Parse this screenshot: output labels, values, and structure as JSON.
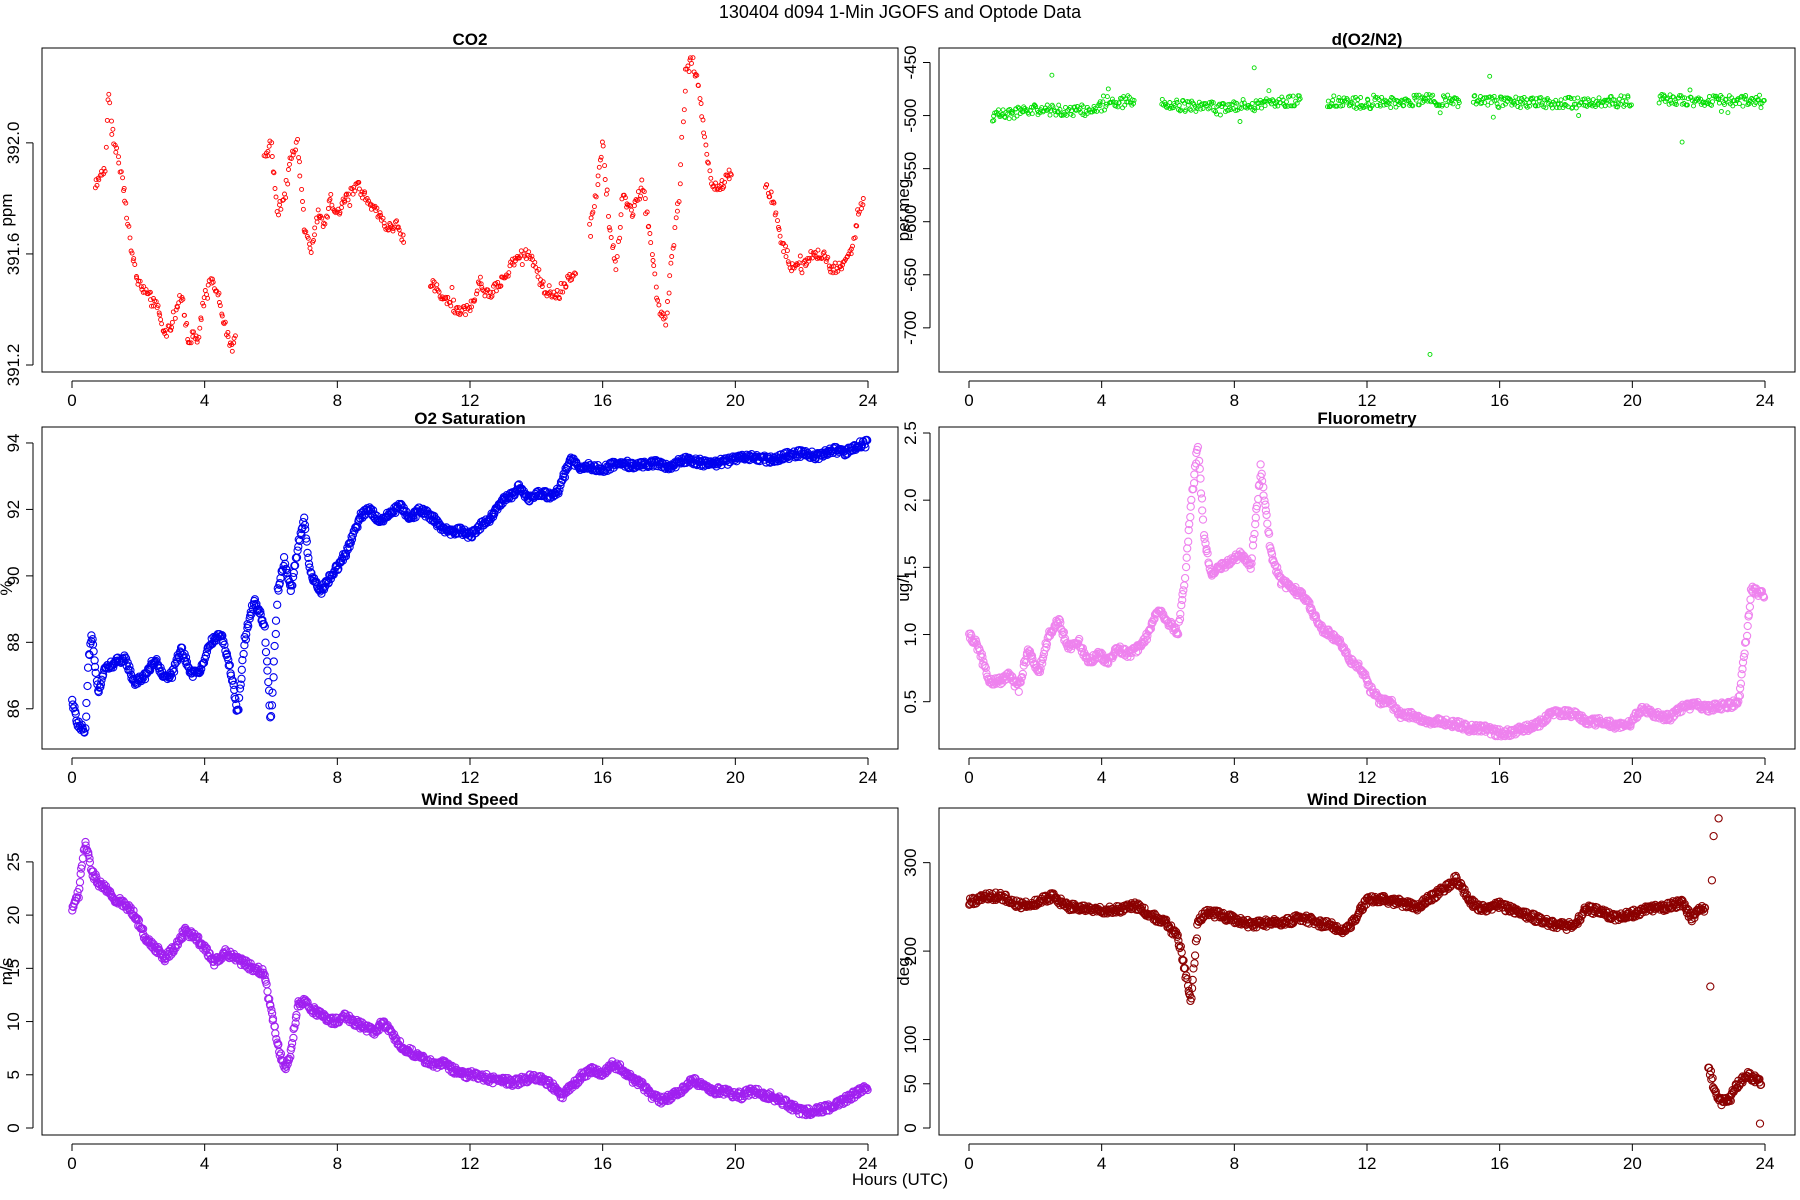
{
  "figure": {
    "title": "130404   d094   1-Min  JGOFS and Optode Data",
    "xlabel": "Hours (UTC)"
  },
  "chart_data": [
    {
      "type": "scatter",
      "title": "CO2",
      "ylabel": "ppm",
      "color": "#ff0000",
      "marker_scale": 0.55,
      "xlim": [
        0,
        24
      ],
      "xticks": [
        0,
        4,
        8,
        12,
        16,
        20,
        24
      ],
      "ylim": [
        391.2,
        392.32
      ],
      "yticks": [
        391.2,
        391.6,
        392.0
      ],
      "ytick_labels": [
        "391.2",
        "391.6",
        "392.0"
      ],
      "segments": [
        {
          "x": [
            0.7,
            1.0,
            1.1,
            1.2,
            1.4,
            1.6,
            1.8,
            2.0,
            2.3,
            2.6,
            2.8,
            3.0,
            3.3,
            3.5,
            3.8,
            4.0,
            4.2,
            4.4,
            4.6,
            4.8,
            4.95
          ],
          "y": [
            391.85,
            391.9,
            392.2,
            392.05,
            391.95,
            391.8,
            391.6,
            391.5,
            391.45,
            391.4,
            391.3,
            391.35,
            391.45,
            391.3,
            391.3,
            391.45,
            391.5,
            391.45,
            391.35,
            391.25,
            391.3
          ]
        },
        {
          "x": [
            5.8,
            6.0,
            6.2,
            6.4,
            6.6,
            6.8,
            7.0,
            7.2,
            7.4,
            7.6,
            7.8,
            8.0,
            8.3,
            8.6,
            8.9,
            9.2,
            9.5,
            9.8,
            10.0
          ],
          "y": [
            391.95,
            392.0,
            391.75,
            391.8,
            391.95,
            392.0,
            391.7,
            391.6,
            391.75,
            391.7,
            391.8,
            391.75,
            391.8,
            391.85,
            391.8,
            391.75,
            391.7,
            391.7,
            391.65
          ]
        },
        {
          "x": [
            10.8,
            11.2,
            11.6,
            12.0,
            12.3,
            12.6,
            12.9,
            13.2,
            13.5,
            13.8,
            14.0,
            14.3,
            14.6,
            14.9,
            15.2
          ],
          "y": [
            391.5,
            391.45,
            391.4,
            391.4,
            391.5,
            391.45,
            391.5,
            391.55,
            391.6,
            391.6,
            391.55,
            391.45,
            391.45,
            391.5,
            391.55
          ]
        },
        {
          "x": [
            15.6,
            15.8,
            16.0,
            16.2,
            16.4,
            16.6,
            16.9,
            17.2,
            17.5,
            17.7,
            17.9,
            18.1,
            18.3,
            18.5,
            18.7,
            18.9,
            19.1,
            19.3,
            19.6,
            19.9
          ],
          "y": [
            391.7,
            391.8,
            392.0,
            391.7,
            391.55,
            391.8,
            391.75,
            391.85,
            391.6,
            391.4,
            391.35,
            391.6,
            391.8,
            392.25,
            392.3,
            392.2,
            392.0,
            391.85,
            391.85,
            391.9
          ]
        },
        {
          "x": [
            20.9,
            21.1,
            21.4,
            21.7,
            22.0,
            22.3,
            22.6,
            22.9,
            23.2,
            23.5,
            23.7,
            23.9
          ],
          "y": [
            391.85,
            391.8,
            391.65,
            391.55,
            391.55,
            391.6,
            391.6,
            391.55,
            391.55,
            391.6,
            391.75,
            391.8
          ]
        }
      ]
    },
    {
      "type": "scatter",
      "title": "d(O2/N2)",
      "ylabel": "per meg",
      "color": "#00dd00",
      "marker_scale": 0.55,
      "xlim": [
        0,
        24
      ],
      "xticks": [
        0,
        4,
        8,
        12,
        16,
        20,
        24
      ],
      "ylim": [
        -735,
        -442
      ],
      "yticks": [
        -700,
        -650,
        -600,
        -550,
        -500,
        -450
      ],
      "ytick_labels": [
        "-700",
        "-650",
        "-600",
        "-550",
        "-500",
        "-450"
      ],
      "segments": [
        {
          "x": [
            0.7,
            2.0,
            3.5,
            5.0
          ],
          "y": [
            -500,
            -495,
            -495,
            -485
          ]
        },
        {
          "x": [
            5.8,
            7.5,
            9.0,
            10.0
          ],
          "y": [
            -490,
            -492,
            -488,
            -486
          ]
        },
        {
          "x": [
            10.8,
            12.5,
            14.0,
            14.8
          ],
          "y": [
            -488,
            -488,
            -485,
            -488
          ]
        },
        {
          "x": [
            15.2,
            17.0,
            18.5,
            20.0
          ],
          "y": [
            -486,
            -488,
            -488,
            -486
          ]
        },
        {
          "x": [
            20.8,
            22.5,
            24.0
          ],
          "y": [
            -485,
            -486,
            -488
          ]
        }
      ],
      "outliers": {
        "x": [
          13.9,
          8.6,
          21.5,
          15.7,
          2.5
        ],
        "y": [
          -725,
          -455,
          -525,
          -463,
          -462
        ]
      }
    },
    {
      "type": "scatter",
      "title": "O2 Saturation",
      "ylabel": "%",
      "color": "#0000ee",
      "marker_scale": 1.0,
      "xlim": [
        0,
        24
      ],
      "xticks": [
        0,
        4,
        8,
        12,
        16,
        20,
        24
      ],
      "ylim": [
        85.0,
        94.3
      ],
      "yticks": [
        86,
        88,
        90,
        92,
        94
      ],
      "ytick_labels": [
        "86",
        "88",
        "90",
        "92",
        "94"
      ],
      "segments": [
        {
          "x": [
            0.0,
            0.2,
            0.4,
            0.5,
            0.6,
            0.8,
            1.0,
            1.3,
            1.6,
            1.9,
            2.2,
            2.5,
            2.8,
            3.0,
            3.3,
            3.6,
            3.9,
            4.2,
            4.5,
            4.8,
            5.0,
            5.2,
            5.5,
            5.8,
            6.0,
            6.2,
            6.4,
            6.6,
            6.8,
            7.0,
            7.2,
            7.5,
            7.8,
            8.1,
            8.4,
            8.7,
            9.0,
            9.3,
            9.6,
            9.9,
            10.2,
            10.5,
            10.8,
            11.1,
            11.4,
            11.7,
            12.0,
            12.3,
            12.6,
            12.9,
            13.2,
            13.5,
            13.8,
            14.1,
            14.4,
            14.7,
            15.0,
            15.3,
            15.6,
            16.0,
            16.5,
            17.0,
            17.5,
            18.0,
            18.5,
            19.0,
            19.5,
            20.0,
            20.5,
            21.0,
            21.5,
            22.0,
            22.5,
            23.0,
            23.3,
            23.6,
            24.0
          ],
          "y": [
            86.2,
            85.5,
            85.3,
            87.5,
            88.2,
            86.5,
            87.2,
            87.4,
            87.5,
            86.8,
            87.0,
            87.5,
            86.9,
            87.0,
            87.8,
            87.0,
            87.2,
            88.0,
            88.3,
            87.0,
            85.9,
            88.0,
            89.3,
            88.5,
            85.6,
            89.5,
            90.5,
            89.5,
            90.8,
            91.7,
            90.0,
            89.5,
            90.0,
            90.4,
            91.0,
            91.8,
            92.0,
            91.6,
            91.9,
            92.1,
            91.7,
            92.0,
            91.8,
            91.5,
            91.3,
            91.4,
            91.2,
            91.5,
            91.7,
            92.2,
            92.4,
            92.7,
            92.3,
            92.5,
            92.4,
            92.6,
            93.5,
            93.3,
            93.3,
            93.2,
            93.4,
            93.3,
            93.4,
            93.3,
            93.5,
            93.4,
            93.4,
            93.5,
            93.6,
            93.5,
            93.6,
            93.7,
            93.6,
            93.8,
            93.7,
            93.9,
            94.0
          ]
        }
      ]
    },
    {
      "type": "scatter",
      "title": "Fluorometry",
      "ylabel": "ug/l",
      "color": "#ee82ee",
      "marker_scale": 1.0,
      "xlim": [
        0,
        24
      ],
      "xticks": [
        0,
        4,
        8,
        12,
        16,
        20,
        24
      ],
      "ylim": [
        0.2,
        2.5
      ],
      "yticks": [
        0.5,
        1.0,
        1.5,
        2.0,
        2.5
      ],
      "ytick_labels": [
        "0.5",
        "1.0",
        "1.5",
        "2.0",
        "2.5"
      ],
      "segments": [
        {
          "x": [
            0.0,
            0.3,
            0.6,
            0.9,
            1.2,
            1.5,
            1.8,
            2.1,
            2.4,
            2.7,
            3.0,
            3.3,
            3.6,
            3.9,
            4.2,
            4.5,
            4.8,
            5.1,
            5.4,
            5.7,
            6.0,
            6.3,
            6.5,
            6.7,
            6.9,
            7.1,
            7.3,
            7.6,
            7.9,
            8.2,
            8.5,
            8.8,
            9.1,
            9.4,
            9.7,
            10.0,
            10.3,
            10.6,
            10.9,
            11.2,
            11.5,
            11.8,
            12.1,
            12.4,
            12.7,
            13.0,
            13.3,
            13.6,
            13.9,
            14.3,
            14.7,
            15.1,
            15.5,
            15.9,
            16.3,
            16.7,
            17.1,
            17.5,
            17.9,
            18.3,
            18.7,
            19.1,
            19.5,
            19.9,
            20.3,
            20.7,
            21.1,
            21.5,
            21.9,
            22.3,
            22.7,
            23.0,
            23.2,
            23.4,
            23.6,
            23.8,
            24.0
          ],
          "y": [
            1.0,
            0.9,
            0.65,
            0.65,
            0.7,
            0.6,
            0.9,
            0.7,
            1.0,
            1.1,
            0.9,
            0.95,
            0.8,
            0.85,
            0.8,
            0.9,
            0.85,
            0.9,
            1.0,
            1.2,
            1.1,
            1.0,
            1.4,
            2.0,
            2.4,
            1.7,
            1.45,
            1.5,
            1.55,
            1.6,
            1.5,
            2.25,
            1.6,
            1.4,
            1.35,
            1.3,
            1.2,
            1.05,
            1.0,
            0.95,
            0.8,
            0.75,
            0.6,
            0.5,
            0.5,
            0.4,
            0.4,
            0.38,
            0.35,
            0.35,
            0.33,
            0.3,
            0.3,
            0.27,
            0.27,
            0.3,
            0.32,
            0.4,
            0.42,
            0.4,
            0.35,
            0.35,
            0.32,
            0.33,
            0.45,
            0.4,
            0.38,
            0.45,
            0.48,
            0.45,
            0.47,
            0.48,
            0.5,
            0.9,
            1.35,
            1.3,
            1.3
          ]
        }
      ]
    },
    {
      "type": "scatter",
      "title": "Wind Speed",
      "ylabel": "m/s",
      "color": "#a020f0",
      "marker_scale": 1.0,
      "xlim": [
        0,
        24
      ],
      "xticks": [
        0,
        4,
        8,
        12,
        16,
        20,
        24
      ],
      "ylim": [
        0,
        29.5
      ],
      "yticks": [
        0,
        5,
        10,
        15,
        20,
        25
      ],
      "ytick_labels": [
        "0",
        "5",
        "10",
        "15",
        "20",
        "25"
      ],
      "segments": [
        {
          "x": [
            0.0,
            0.2,
            0.4,
            0.6,
            0.8,
            1.0,
            1.3,
            1.6,
            1.9,
            2.2,
            2.5,
            2.8,
            3.1,
            3.4,
            3.7,
            4.0,
            4.3,
            4.6,
            4.9,
            5.2,
            5.5,
            5.8,
            6.0,
            6.2,
            6.4,
            6.6,
            6.8,
            7.0,
            7.3,
            7.6,
            7.9,
            8.2,
            8.5,
            8.8,
            9.1,
            9.4,
            9.7,
            10.0,
            10.3,
            10.6,
            10.9,
            11.2,
            11.5,
            11.8,
            12.1,
            12.4,
            12.7,
            13.0,
            13.3,
            13.6,
            13.9,
            14.2,
            14.5,
            14.8,
            15.1,
            15.4,
            15.7,
            16.0,
            16.3,
            16.6,
            16.9,
            17.2,
            17.5,
            17.8,
            18.1,
            18.4,
            18.7,
            19.0,
            19.3,
            19.6,
            19.9,
            20.2,
            20.5,
            20.8,
            21.1,
            21.4,
            21.7,
            22.0,
            22.3,
            22.6,
            22.9,
            23.2,
            23.5,
            23.8,
            24.0
          ],
          "y": [
            20.5,
            22.0,
            27.0,
            24.0,
            23.0,
            22.5,
            21.5,
            21.0,
            20.0,
            18.0,
            17.0,
            16.0,
            17.0,
            18.5,
            18.0,
            17.0,
            15.5,
            16.5,
            16.0,
            15.5,
            15.0,
            14.5,
            11.0,
            8.0,
            5.5,
            7.0,
            11.5,
            12.0,
            11.0,
            10.5,
            10.0,
            10.5,
            10.0,
            9.5,
            9.0,
            10.0,
            8.5,
            7.5,
            7.0,
            6.5,
            6.0,
            6.0,
            5.5,
            5.0,
            5.0,
            4.8,
            4.5,
            4.5,
            4.2,
            4.5,
            4.8,
            4.6,
            4.0,
            3.0,
            4.0,
            5.0,
            5.5,
            5.0,
            6.0,
            5.5,
            4.5,
            4.0,
            3.0,
            2.5,
            3.0,
            3.5,
            4.5,
            4.0,
            3.5,
            3.5,
            3.2,
            3.0,
            3.5,
            3.2,
            3.0,
            2.5,
            2.0,
            1.5,
            1.5,
            1.8,
            2.0,
            2.5,
            3.0,
            3.5,
            3.8
          ]
        }
      ]
    },
    {
      "type": "scatter",
      "title": "Wind Direction",
      "ylabel": "deg",
      "color": "#8b0000",
      "marker_scale": 1.0,
      "xlim": [
        0,
        24
      ],
      "xticks": [
        0,
        4,
        8,
        12,
        16,
        20,
        24
      ],
      "ylim": [
        0,
        355
      ],
      "yticks": [
        0,
        50,
        100,
        200,
        300
      ],
      "ytick_labels": [
        "0",
        "50",
        "100",
        "200",
        "300"
      ],
      "segments": [
        {
          "x": [
            0.0,
            0.5,
            1.0,
            1.5,
            2.0,
            2.5,
            3.0,
            3.5,
            4.0,
            4.5,
            5.0,
            5.5,
            6.0,
            6.3,
            6.5,
            6.7,
            6.9,
            7.2,
            7.6,
            8.0,
            8.5,
            9.0,
            9.5,
            10.0,
            10.5,
            11.0,
            11.3,
            11.6,
            12.0,
            12.5,
            13.0,
            13.5,
            14.0,
            14.3,
            14.7,
            15.0,
            15.3,
            15.6,
            16.0,
            16.5,
            17.0,
            17.5,
            18.0,
            18.3,
            18.6,
            19.0,
            19.5,
            20.0,
            20.5,
            21.0,
            21.5,
            21.8,
            22.0,
            22.2
          ],
          "y": [
            255,
            262,
            262,
            252,
            255,
            262,
            250,
            248,
            246,
            247,
            252,
            240,
            230,
            215,
            180,
            140,
            235,
            245,
            240,
            236,
            230,
            232,
            232,
            238,
            232,
            228,
            220,
            235,
            258,
            258,
            255,
            250,
            262,
            270,
            282,
            262,
            250,
            248,
            252,
            245,
            238,
            232,
            228,
            230,
            248,
            245,
            238,
            242,
            248,
            250,
            255,
            235,
            250,
            245
          ]
        },
        {
          "x": [
            22.3,
            22.5,
            22.7,
            22.9,
            23.1,
            23.3,
            23.5,
            23.7,
            23.9
          ],
          "y": [
            70,
            40,
            30,
            30,
            45,
            55,
            60,
            55,
            50
          ]
        }
      ],
      "outliers": {
        "x": [
          22.6,
          22.45,
          22.4,
          22.35,
          23.85
        ],
        "y": [
          350,
          330,
          280,
          160,
          5
        ]
      }
    }
  ]
}
